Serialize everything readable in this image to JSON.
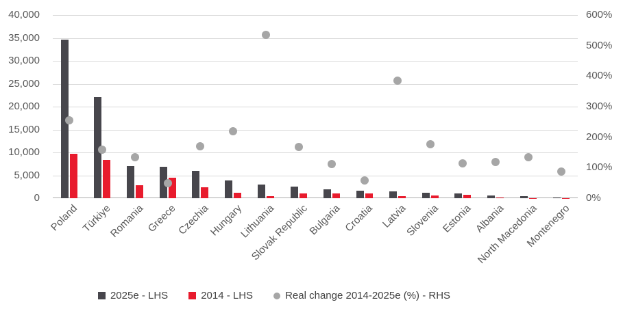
{
  "chart_data": {
    "type": "bar",
    "subtype": "grouped-bars-with-scatter-overlay",
    "title": "",
    "categories": [
      "Poland",
      "Türkiye",
      "Romania",
      "Greece",
      "Czechia",
      "Hungary",
      "Lithuania",
      "Slovak Republic",
      "Bulgaria",
      "Croatia",
      "Latvia",
      "Slovenia",
      "Estonia",
      "Albania",
      "North Macedonia",
      "Montenegro"
    ],
    "series": [
      {
        "name": "2025e - LHS",
        "type": "bar",
        "axis": "left",
        "values": [
          34700,
          22100,
          7000,
          6900,
          6000,
          3900,
          3000,
          2600,
          1950,
          1700,
          1500,
          1250,
          1100,
          600,
          450,
          150
        ]
      },
      {
        "name": "2014 - LHS",
        "type": "bar",
        "axis": "left",
        "values": [
          9650,
          8350,
          2800,
          4500,
          2350,
          1250,
          500,
          1000,
          1000,
          1100,
          450,
          650,
          800,
          150,
          80,
          60
        ]
      },
      {
        "name": "Real change  2014-2025e (%) - RHS",
        "type": "scatter",
        "axis": "right",
        "values": [
          255,
          160,
          135,
          50,
          170,
          220,
          535,
          168,
          112,
          58,
          385,
          176,
          114,
          118,
          134,
          88
        ]
      }
    ],
    "left_axis": {
      "min": 0,
      "max": 40000,
      "step": 5000,
      "tick_labels": [
        "0",
        "5,000",
        "10,000",
        "15,000",
        "20,000",
        "25,000",
        "30,000",
        "35,000",
        "40,000"
      ]
    },
    "right_axis": {
      "min": 0,
      "max": 600,
      "step": 100,
      "tick_labels": [
        "0%",
        "100%",
        "200%",
        "300%",
        "400%",
        "500%",
        "600%"
      ]
    },
    "grid": true,
    "legend_position": "bottom"
  },
  "colors": {
    "bar_2025e": "#47464c",
    "bar_2014": "#e81b2d",
    "dot_real_change": "#a6a6a6",
    "gridline": "#d9d9d9",
    "axis_text": "#595959",
    "legend_text": "#404040",
    "background": "#ffffff"
  }
}
